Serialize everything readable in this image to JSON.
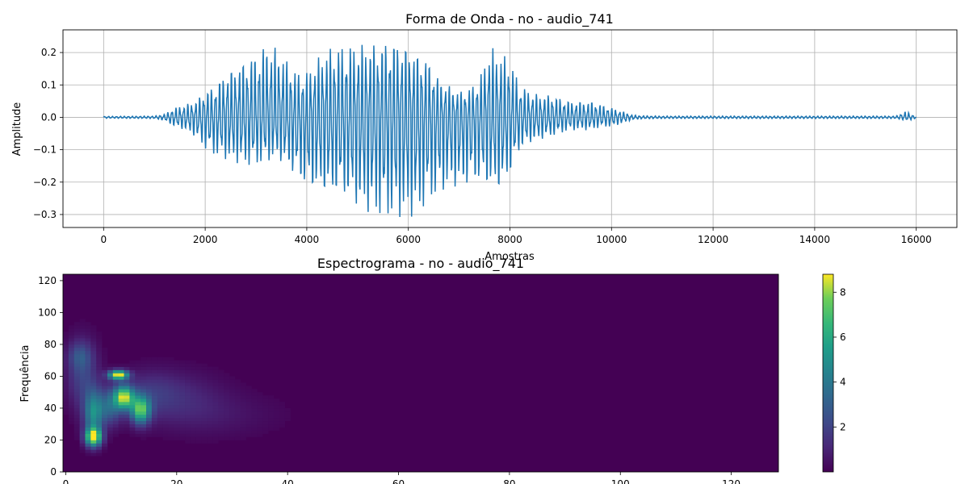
{
  "chart_data": [
    {
      "type": "line",
      "title": "Forma de Onda - no - audio_741",
      "xlabel": "Amostras",
      "ylabel": "Amplitude",
      "xlim": [
        -800,
        16800
      ],
      "ylim": [
        -0.34,
        0.27
      ],
      "grid": true,
      "xticks": [
        0,
        2000,
        4000,
        6000,
        8000,
        10000,
        12000,
        14000,
        16000
      ],
      "xtick_labels": [
        "0",
        "2000",
        "4000",
        "6000",
        "8000",
        "10000",
        "12000",
        "14000",
        "16000"
      ],
      "yticks": [
        0.2,
        0.1,
        0.0,
        -0.1,
        -0.2,
        -0.3
      ],
      "ytick_labels": [
        "0.2",
        "0.1",
        "0.0",
        "−0.1",
        "−0.2",
        "−0.3"
      ],
      "line_color": "#1f77b4",
      "envelope": {
        "x": [
          0,
          1000,
          1200,
          1400,
          1600,
          1800,
          2000,
          2200,
          2400,
          2600,
          2800,
          3000,
          3200,
          3400,
          3600,
          3800,
          4000,
          4200,
          4400,
          4600,
          4800,
          5000,
          5200,
          5400,
          5600,
          5800,
          6000,
          6200,
          6400,
          6600,
          6800,
          7000,
          7200,
          7400,
          7600,
          7800,
          8000,
          8200,
          8400,
          8600,
          8800,
          9000,
          9200,
          9400,
          9600,
          9800,
          10000,
          10200,
          10400,
          10600,
          11000,
          12000,
          14000,
          15600,
          15800,
          15900,
          16000
        ],
        "upper": [
          0.003,
          0.004,
          0.01,
          0.03,
          0.04,
          0.05,
          0.08,
          0.1,
          0.14,
          0.16,
          0.18,
          0.2,
          0.23,
          0.22,
          0.18,
          0.14,
          0.14,
          0.18,
          0.21,
          0.22,
          0.22,
          0.23,
          0.23,
          0.23,
          0.24,
          0.24,
          0.22,
          0.2,
          0.18,
          0.12,
          0.1,
          0.08,
          0.09,
          0.12,
          0.22,
          0.2,
          0.18,
          0.1,
          0.08,
          0.07,
          0.07,
          0.06,
          0.05,
          0.05,
          0.05,
          0.04,
          0.03,
          0.02,
          0.008,
          0.005,
          0.004,
          0.004,
          0.004,
          0.004,
          0.02,
          0.01,
          0.003
        ],
        "lower": [
          -0.003,
          -0.004,
          -0.01,
          -0.03,
          -0.04,
          -0.06,
          -0.1,
          -0.12,
          -0.13,
          -0.14,
          -0.15,
          -0.15,
          -0.14,
          -0.13,
          -0.15,
          -0.19,
          -0.22,
          -0.23,
          -0.24,
          -0.24,
          -0.25,
          -0.28,
          -0.3,
          -0.31,
          -0.31,
          -0.31,
          -0.31,
          -0.3,
          -0.26,
          -0.24,
          -0.22,
          -0.22,
          -0.21,
          -0.2,
          -0.22,
          -0.23,
          -0.18,
          -0.1,
          -0.08,
          -0.07,
          -0.06,
          -0.05,
          -0.04,
          -0.04,
          -0.04,
          -0.03,
          -0.03,
          -0.02,
          -0.008,
          -0.005,
          -0.004,
          -0.004,
          -0.004,
          -0.004,
          -0.01,
          -0.008,
          -0.003
        ]
      }
    },
    {
      "type": "heatmap",
      "title": "Espectrograma - no - audio_741",
      "xlabel": "",
      "ylabel": "Frequência",
      "xlim": [
        -0.5,
        128.5
      ],
      "ylim": [
        0,
        124
      ],
      "grid": false,
      "xticks": [
        0,
        20,
        40,
        60,
        80,
        100,
        120
      ],
      "xtick_labels": [
        "0",
        "20",
        "40",
        "60",
        "80",
        "100",
        "120"
      ],
      "yticks": [
        0,
        20,
        40,
        60,
        80,
        100,
        120
      ],
      "ytick_labels": [
        "0",
        "20",
        "40",
        "60",
        "80",
        "100",
        "120"
      ],
      "colormap": "viridis",
      "colorbar": {
        "range": [
          0.0,
          8.8
        ],
        "ticks": [
          2,
          4,
          6,
          8
        ],
        "tick_labels": [
          "2",
          "4",
          "6",
          "8"
        ]
      },
      "hotspots": [
        {
          "time": 5,
          "freq": 21,
          "value": 8.5,
          "t_spread": 1.0,
          "f_spread": 4
        },
        {
          "time": 5,
          "freq": 36,
          "value": 4.5,
          "t_spread": 1.2,
          "f_spread": 10
        },
        {
          "time": 9.5,
          "freq": 60,
          "value": 8.8,
          "t_spread": 1.2,
          "f_spread": 2
        },
        {
          "time": 10.5,
          "freq": 46,
          "value": 7.5,
          "t_spread": 1.2,
          "f_spread": 5
        },
        {
          "time": 13.5,
          "freq": 38,
          "value": 6.8,
          "t_spread": 1.2,
          "f_spread": 6
        },
        {
          "time": 8,
          "freq": 40,
          "value": 3.0,
          "t_spread": 1.5,
          "f_spread": 8
        },
        {
          "time": 3,
          "freq": 60,
          "value": 2.0,
          "t_spread": 2.0,
          "f_spread": 15
        },
        {
          "time": 2.5,
          "freq": 72,
          "value": 1.6,
          "t_spread": 1.5,
          "f_spread": 6
        },
        {
          "time": 15,
          "freq": 48,
          "value": 1.5,
          "t_spread": 4.0,
          "f_spread": 10
        },
        {
          "time": 22,
          "freq": 45,
          "value": 0.8,
          "t_spread": 5.0,
          "f_spread": 12
        },
        {
          "time": 28,
          "freq": 35,
          "value": 0.5,
          "t_spread": 8.0,
          "f_spread": 10
        }
      ]
    }
  ]
}
